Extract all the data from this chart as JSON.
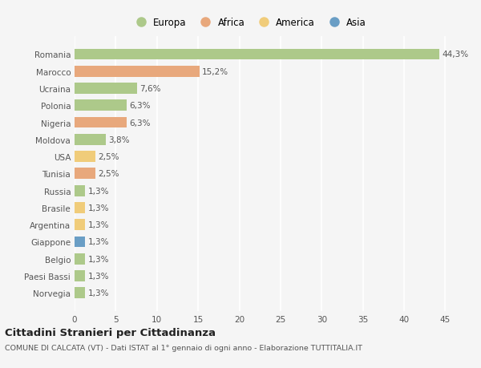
{
  "countries": [
    "Romania",
    "Marocco",
    "Ucraina",
    "Polonia",
    "Nigeria",
    "Moldova",
    "USA",
    "Tunisia",
    "Russia",
    "Brasile",
    "Argentina",
    "Giappone",
    "Belgio",
    "Paesi Bassi",
    "Norvegia"
  ],
  "values": [
    44.3,
    15.2,
    7.6,
    6.3,
    6.3,
    3.8,
    2.5,
    2.5,
    1.3,
    1.3,
    1.3,
    1.3,
    1.3,
    1.3,
    1.3
  ],
  "labels": [
    "44,3%",
    "15,2%",
    "7,6%",
    "6,3%",
    "6,3%",
    "3,8%",
    "2,5%",
    "2,5%",
    "1,3%",
    "1,3%",
    "1,3%",
    "1,3%",
    "1,3%",
    "1,3%",
    "1,3%"
  ],
  "colors": [
    "#adc98a",
    "#e8a87c",
    "#adc98a",
    "#adc98a",
    "#e8a87c",
    "#adc98a",
    "#f0cc7a",
    "#e8a87c",
    "#adc98a",
    "#f0cc7a",
    "#f0cc7a",
    "#6a9ec5",
    "#adc98a",
    "#adc98a",
    "#adc98a"
  ],
  "legend_labels": [
    "Europa",
    "Africa",
    "America",
    "Asia"
  ],
  "legend_colors": [
    "#adc98a",
    "#e8a87c",
    "#f0cc7a",
    "#6a9ec5"
  ],
  "title": "Cittadini Stranieri per Cittadinanza",
  "subtitle": "COMUNE DI CALCATA (VT) - Dati ISTAT al 1° gennaio di ogni anno - Elaborazione TUTTITALIA.IT",
  "xlim": [
    0,
    47
  ],
  "xticks": [
    0,
    5,
    10,
    15,
    20,
    25,
    30,
    35,
    40,
    45
  ],
  "background_color": "#f5f5f5",
  "bar_height": 0.65,
  "label_fontsize": 7.5,
  "tick_fontsize": 7.5,
  "legend_fontsize": 8.5,
  "title_fontsize": 9.5,
  "subtitle_fontsize": 6.8
}
